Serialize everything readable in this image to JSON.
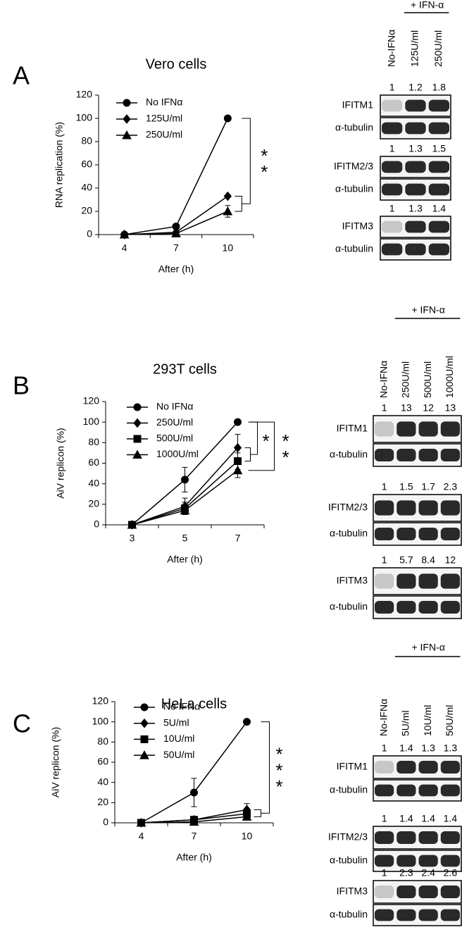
{
  "panels": [
    "A",
    "B",
    "C"
  ],
  "chart_data": [
    {
      "type": "line",
      "title": "Vero cells",
      "y_label": "RNA replication (%)",
      "x_label": "After (h)",
      "categories": [
        "4",
        "7",
        "10"
      ],
      "ylim": [
        0,
        120
      ],
      "yticks": [
        0,
        20,
        40,
        60,
        80,
        100,
        120
      ],
      "series": [
        {
          "name": "No IFNα",
          "color": "#000000",
          "marker": "circle",
          "values": [
            0,
            7,
            100
          ],
          "errors": [
            0,
            1,
            0
          ]
        },
        {
          "name": "125U/ml",
          "color": "#000000",
          "marker": "diamond",
          "values": [
            0,
            2,
            33
          ],
          "errors": [
            0,
            1,
            1
          ]
        },
        {
          "name": "250U/ml",
          "color": "#000000",
          "marker": "triangle",
          "values": [
            0,
            1,
            20
          ],
          "errors": [
            0,
            1,
            5
          ]
        }
      ],
      "significance": [
        [
          "*",
          "*"
        ]
      ]
    },
    {
      "type": "line",
      "title": "293T cells",
      "y_label": "AiV replicon (%)",
      "x_label": "After (h)",
      "categories": [
        "3",
        "5",
        "7"
      ],
      "ylim": [
        0,
        120
      ],
      "yticks": [
        0,
        20,
        40,
        60,
        80,
        100,
        120
      ],
      "series": [
        {
          "name": "No IFNα",
          "color": "#000000",
          "marker": "circle",
          "values": [
            0,
            44,
            100
          ],
          "errors": [
            0,
            12,
            0
          ]
        },
        {
          "name": "250U/ml",
          "color": "#000000",
          "marker": "diamond",
          "values": [
            0,
            18,
            75
          ],
          "errors": [
            0,
            8,
            13
          ]
        },
        {
          "name": "500U/ml",
          "color": "#000000",
          "marker": "square",
          "values": [
            0,
            16,
            62
          ],
          "errors": [
            0,
            6,
            8
          ]
        },
        {
          "name": "1000U/ml",
          "color": "#000000",
          "marker": "triangle",
          "values": [
            0,
            14,
            53
          ],
          "errors": [
            0,
            4,
            7
          ]
        }
      ],
      "significance": [
        [
          "*"
        ],
        [
          "*",
          "*"
        ]
      ]
    },
    {
      "type": "line",
      "title": "HeLa cells",
      "y_label": "AiV replicon (%)",
      "x_label": "After (h)",
      "categories": [
        "4",
        "7",
        "10"
      ],
      "ylim": [
        0,
        120
      ],
      "yticks": [
        0,
        20,
        40,
        60,
        80,
        100,
        120
      ],
      "series": [
        {
          "name": "No IFNα",
          "color": "#000000",
          "marker": "circle",
          "values": [
            0,
            30,
            100
          ],
          "errors": [
            0,
            14,
            0
          ]
        },
        {
          "name": "5U/ml",
          "color": "#000000",
          "marker": "diamond",
          "values": [
            0,
            3,
            13
          ],
          "errors": [
            0,
            1,
            6
          ]
        },
        {
          "name": "10U/ml",
          "color": "#000000",
          "marker": "square",
          "values": [
            0,
            3,
            9
          ],
          "errors": [
            0,
            1,
            4
          ]
        },
        {
          "name": "50U/ml",
          "color": "#000000",
          "marker": "triangle",
          "values": [
            0,
            1,
            6
          ],
          "errors": [
            0,
            1,
            3
          ]
        }
      ],
      "significance": [
        [
          "*",
          "*",
          "*"
        ]
      ]
    }
  ],
  "blots": [
    {
      "header": "+ IFN-α",
      "lanes": [
        "No-IFNα",
        "125U/ml",
        "250U/ml"
      ],
      "rows": [
        {
          "quant": [
            1,
            1.2,
            1.8
          ],
          "protein": "IFITM1",
          "control": "α-tubulin"
        },
        {
          "quant": [
            1,
            1.3,
            1.5
          ],
          "protein": "IFITM2/3",
          "control": "α-tubulin"
        },
        {
          "quant": [
            1,
            1.3,
            1.4
          ],
          "protein": "IFITM3",
          "control": "α-tubulin"
        }
      ]
    },
    {
      "header": "+ IFN-α",
      "lanes": [
        "No-IFNα",
        "250U/ml",
        "500U/ml",
        "1000U/ml"
      ],
      "rows": [
        {
          "quant": [
            1,
            13,
            12,
            13
          ],
          "protein": "IFITM1",
          "control": "α-tubulin"
        },
        {
          "quant": [
            1,
            1.5,
            1.7,
            2.3
          ],
          "protein": "IFITM2/3",
          "control": "α-tubulin"
        },
        {
          "quant": [
            1,
            5.7,
            8.4,
            12
          ],
          "protein": "IFITM3",
          "control": "α-tubulin"
        }
      ]
    },
    {
      "header": "+ IFN-α",
      "lanes": [
        "No-IFNα",
        "5U/ml",
        "10U/ml",
        "50U/ml"
      ],
      "rows": [
        {
          "quant": [
            1,
            1.4,
            1.3,
            1.3
          ],
          "protein": "IFITM1",
          "control": "α-tubulin"
        },
        {
          "quant": [
            1,
            1.4,
            1.4,
            1.4
          ],
          "protein": "IFITM2/3",
          "control": "α-tubulin"
        },
        {
          "quant": [
            1,
            2.3,
            2.4,
            2.6
          ],
          "protein": "IFITM3",
          "control": "α-tubulin"
        }
      ]
    }
  ]
}
